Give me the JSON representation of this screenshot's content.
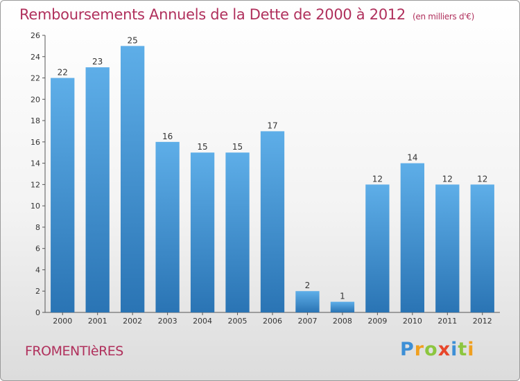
{
  "header": {
    "title": "Remboursements Annuels de la Dette de 2000 à 2012",
    "subtitle": "(en milliers d'€)"
  },
  "footer": {
    "commune": "FROMENTIèRES",
    "logo_letters": [
      "P",
      "r",
      "o",
      "x",
      "i",
      "t",
      "i"
    ],
    "logo_colors": [
      "#3d8fd6",
      "#f0a020",
      "#8cc63f",
      "#e8462a",
      "#3d8fd6",
      "#8cc63f",
      "#f0a020"
    ]
  },
  "chart_data": {
    "type": "bar",
    "categories": [
      "2000",
      "2001",
      "2002",
      "2003",
      "2004",
      "2005",
      "2006",
      "2007",
      "2008",
      "2009",
      "2010",
      "2011",
      "2012"
    ],
    "values": [
      22,
      23,
      25,
      16,
      15,
      15,
      17,
      2,
      1,
      12,
      14,
      12,
      12
    ],
    "ylim": [
      0,
      26
    ],
    "yticks": [
      0,
      2,
      4,
      6,
      8,
      10,
      12,
      14,
      16,
      18,
      20,
      22,
      24,
      26
    ],
    "grid": false,
    "bar_color_top": "#5eaee8",
    "bar_color_bottom": "#2a74b4"
  }
}
